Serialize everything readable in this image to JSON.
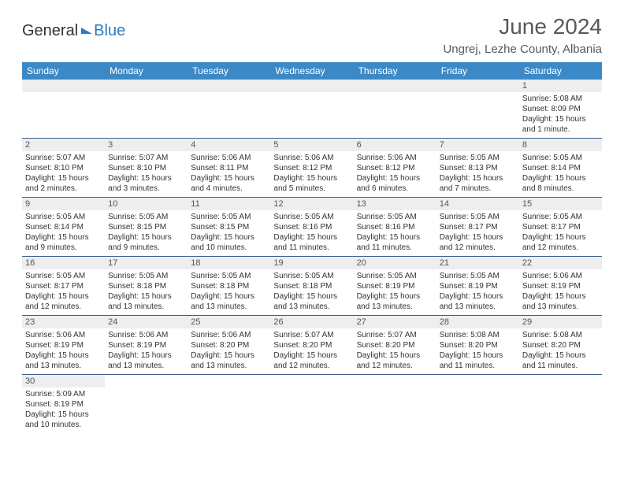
{
  "brand": {
    "part1": "General",
    "part2": "Blue"
  },
  "title": "June 2024",
  "location": "Ungrej, Lezhe County, Albania",
  "colors": {
    "header_bg": "#3b89c7",
    "header_text": "#ffffff",
    "daynum_bg": "#eeeeee",
    "row_border": "#3b5e8a",
    "title_color": "#595959",
    "brand_blue": "#2b7cc0"
  },
  "day_headers": [
    "Sunday",
    "Monday",
    "Tuesday",
    "Wednesday",
    "Thursday",
    "Friday",
    "Saturday"
  ],
  "weeks": [
    [
      {
        "n": "",
        "sr": "",
        "ss": "",
        "d1": "",
        "d2": ""
      },
      {
        "n": "",
        "sr": "",
        "ss": "",
        "d1": "",
        "d2": ""
      },
      {
        "n": "",
        "sr": "",
        "ss": "",
        "d1": "",
        "d2": ""
      },
      {
        "n": "",
        "sr": "",
        "ss": "",
        "d1": "",
        "d2": ""
      },
      {
        "n": "",
        "sr": "",
        "ss": "",
        "d1": "",
        "d2": ""
      },
      {
        "n": "",
        "sr": "",
        "ss": "",
        "d1": "",
        "d2": ""
      },
      {
        "n": "1",
        "sr": "Sunrise: 5:08 AM",
        "ss": "Sunset: 8:09 PM",
        "d1": "Daylight: 15 hours",
        "d2": "and 1 minute."
      }
    ],
    [
      {
        "n": "2",
        "sr": "Sunrise: 5:07 AM",
        "ss": "Sunset: 8:10 PM",
        "d1": "Daylight: 15 hours",
        "d2": "and 2 minutes."
      },
      {
        "n": "3",
        "sr": "Sunrise: 5:07 AM",
        "ss": "Sunset: 8:10 PM",
        "d1": "Daylight: 15 hours",
        "d2": "and 3 minutes."
      },
      {
        "n": "4",
        "sr": "Sunrise: 5:06 AM",
        "ss": "Sunset: 8:11 PM",
        "d1": "Daylight: 15 hours",
        "d2": "and 4 minutes."
      },
      {
        "n": "5",
        "sr": "Sunrise: 5:06 AM",
        "ss": "Sunset: 8:12 PM",
        "d1": "Daylight: 15 hours",
        "d2": "and 5 minutes."
      },
      {
        "n": "6",
        "sr": "Sunrise: 5:06 AM",
        "ss": "Sunset: 8:12 PM",
        "d1": "Daylight: 15 hours",
        "d2": "and 6 minutes."
      },
      {
        "n": "7",
        "sr": "Sunrise: 5:05 AM",
        "ss": "Sunset: 8:13 PM",
        "d1": "Daylight: 15 hours",
        "d2": "and 7 minutes."
      },
      {
        "n": "8",
        "sr": "Sunrise: 5:05 AM",
        "ss": "Sunset: 8:14 PM",
        "d1": "Daylight: 15 hours",
        "d2": "and 8 minutes."
      }
    ],
    [
      {
        "n": "9",
        "sr": "Sunrise: 5:05 AM",
        "ss": "Sunset: 8:14 PM",
        "d1": "Daylight: 15 hours",
        "d2": "and 9 minutes."
      },
      {
        "n": "10",
        "sr": "Sunrise: 5:05 AM",
        "ss": "Sunset: 8:15 PM",
        "d1": "Daylight: 15 hours",
        "d2": "and 9 minutes."
      },
      {
        "n": "11",
        "sr": "Sunrise: 5:05 AM",
        "ss": "Sunset: 8:15 PM",
        "d1": "Daylight: 15 hours",
        "d2": "and 10 minutes."
      },
      {
        "n": "12",
        "sr": "Sunrise: 5:05 AM",
        "ss": "Sunset: 8:16 PM",
        "d1": "Daylight: 15 hours",
        "d2": "and 11 minutes."
      },
      {
        "n": "13",
        "sr": "Sunrise: 5:05 AM",
        "ss": "Sunset: 8:16 PM",
        "d1": "Daylight: 15 hours",
        "d2": "and 11 minutes."
      },
      {
        "n": "14",
        "sr": "Sunrise: 5:05 AM",
        "ss": "Sunset: 8:17 PM",
        "d1": "Daylight: 15 hours",
        "d2": "and 12 minutes."
      },
      {
        "n": "15",
        "sr": "Sunrise: 5:05 AM",
        "ss": "Sunset: 8:17 PM",
        "d1": "Daylight: 15 hours",
        "d2": "and 12 minutes."
      }
    ],
    [
      {
        "n": "16",
        "sr": "Sunrise: 5:05 AM",
        "ss": "Sunset: 8:17 PM",
        "d1": "Daylight: 15 hours",
        "d2": "and 12 minutes."
      },
      {
        "n": "17",
        "sr": "Sunrise: 5:05 AM",
        "ss": "Sunset: 8:18 PM",
        "d1": "Daylight: 15 hours",
        "d2": "and 13 minutes."
      },
      {
        "n": "18",
        "sr": "Sunrise: 5:05 AM",
        "ss": "Sunset: 8:18 PM",
        "d1": "Daylight: 15 hours",
        "d2": "and 13 minutes."
      },
      {
        "n": "19",
        "sr": "Sunrise: 5:05 AM",
        "ss": "Sunset: 8:18 PM",
        "d1": "Daylight: 15 hours",
        "d2": "and 13 minutes."
      },
      {
        "n": "20",
        "sr": "Sunrise: 5:05 AM",
        "ss": "Sunset: 8:19 PM",
        "d1": "Daylight: 15 hours",
        "d2": "and 13 minutes."
      },
      {
        "n": "21",
        "sr": "Sunrise: 5:05 AM",
        "ss": "Sunset: 8:19 PM",
        "d1": "Daylight: 15 hours",
        "d2": "and 13 minutes."
      },
      {
        "n": "22",
        "sr": "Sunrise: 5:06 AM",
        "ss": "Sunset: 8:19 PM",
        "d1": "Daylight: 15 hours",
        "d2": "and 13 minutes."
      }
    ],
    [
      {
        "n": "23",
        "sr": "Sunrise: 5:06 AM",
        "ss": "Sunset: 8:19 PM",
        "d1": "Daylight: 15 hours",
        "d2": "and 13 minutes."
      },
      {
        "n": "24",
        "sr": "Sunrise: 5:06 AM",
        "ss": "Sunset: 8:19 PM",
        "d1": "Daylight: 15 hours",
        "d2": "and 13 minutes."
      },
      {
        "n": "25",
        "sr": "Sunrise: 5:06 AM",
        "ss": "Sunset: 8:20 PM",
        "d1": "Daylight: 15 hours",
        "d2": "and 13 minutes."
      },
      {
        "n": "26",
        "sr": "Sunrise: 5:07 AM",
        "ss": "Sunset: 8:20 PM",
        "d1": "Daylight: 15 hours",
        "d2": "and 12 minutes."
      },
      {
        "n": "27",
        "sr": "Sunrise: 5:07 AM",
        "ss": "Sunset: 8:20 PM",
        "d1": "Daylight: 15 hours",
        "d2": "and 12 minutes."
      },
      {
        "n": "28",
        "sr": "Sunrise: 5:08 AM",
        "ss": "Sunset: 8:20 PM",
        "d1": "Daylight: 15 hours",
        "d2": "and 11 minutes."
      },
      {
        "n": "29",
        "sr": "Sunrise: 5:08 AM",
        "ss": "Sunset: 8:20 PM",
        "d1": "Daylight: 15 hours",
        "d2": "and 11 minutes."
      }
    ],
    [
      {
        "n": "30",
        "sr": "Sunrise: 5:09 AM",
        "ss": "Sunset: 8:19 PM",
        "d1": "Daylight: 15 hours",
        "d2": "and 10 minutes."
      },
      {
        "n": "",
        "sr": "",
        "ss": "",
        "d1": "",
        "d2": ""
      },
      {
        "n": "",
        "sr": "",
        "ss": "",
        "d1": "",
        "d2": ""
      },
      {
        "n": "",
        "sr": "",
        "ss": "",
        "d1": "",
        "d2": ""
      },
      {
        "n": "",
        "sr": "",
        "ss": "",
        "d1": "",
        "d2": ""
      },
      {
        "n": "",
        "sr": "",
        "ss": "",
        "d1": "",
        "d2": ""
      },
      {
        "n": "",
        "sr": "",
        "ss": "",
        "d1": "",
        "d2": ""
      }
    ]
  ]
}
